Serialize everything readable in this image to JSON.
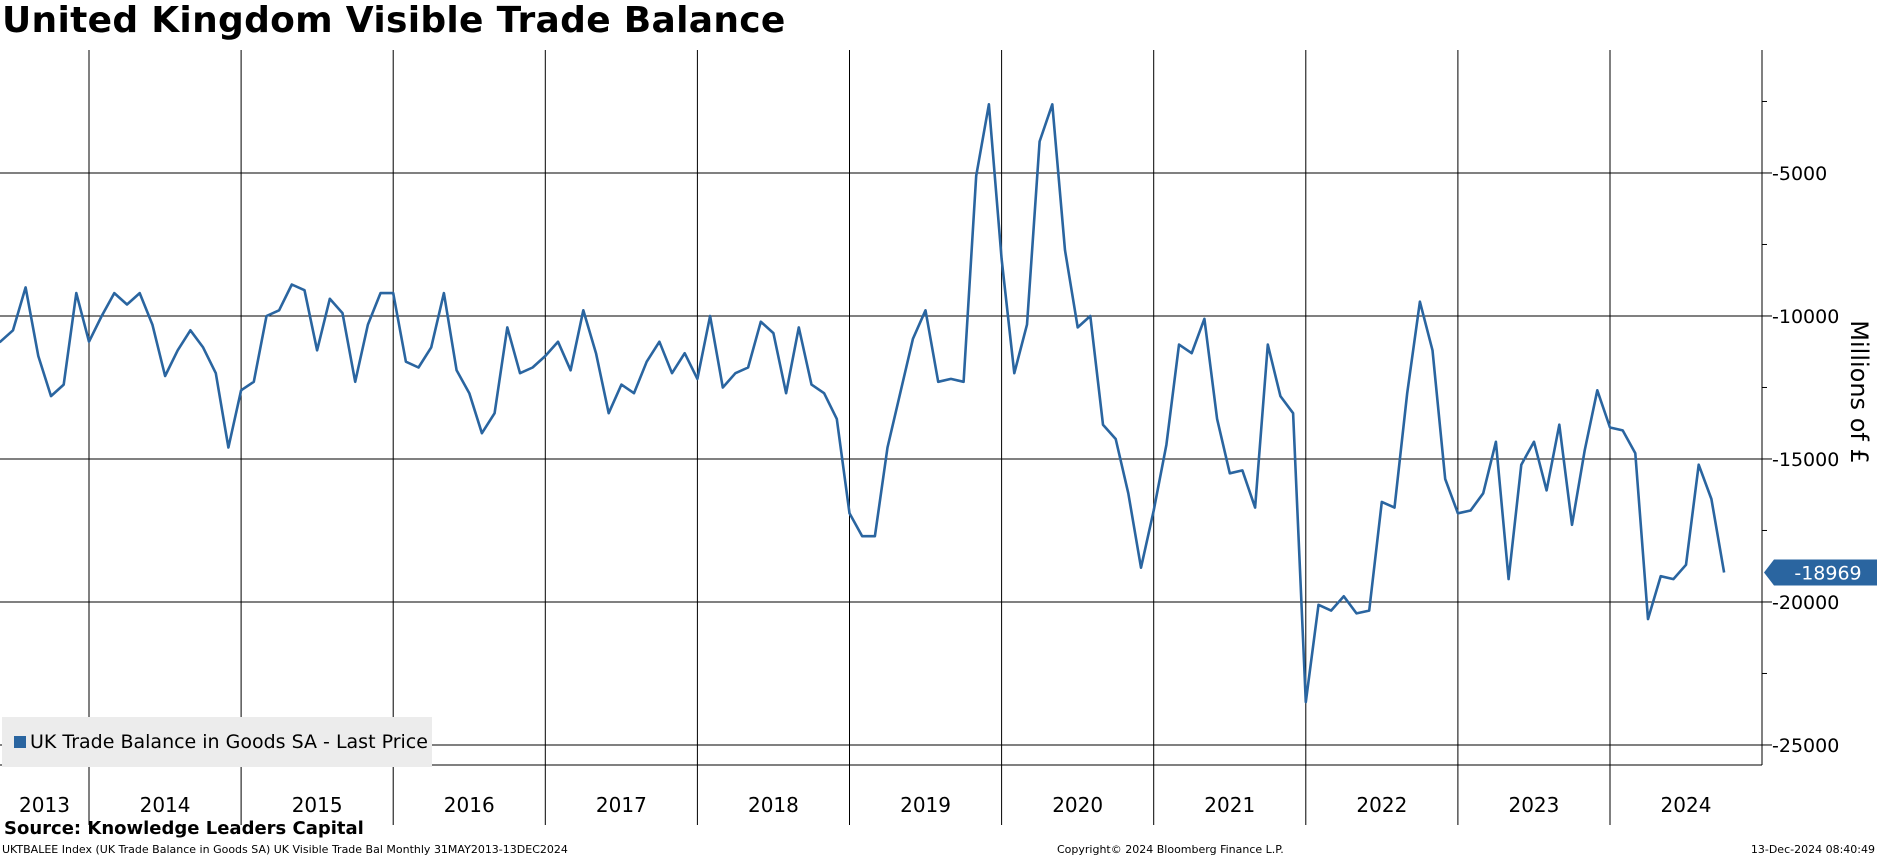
{
  "title": "United Kingdom Visible Trade Balance",
  "source": "Source: Knowledge Leaders Capital",
  "footer": {
    "left": "UKTBALEE Index (UK Trade Balance in Goods SA) UK Visible Trade Bal  Monthly 31MAY2013-13DEC2024",
    "center": "Copyright© 2024 Bloomberg Finance L.P.",
    "right": "13-Dec-2024 08:40:49"
  },
  "colors": {
    "series": "#2a65a0",
    "last_tag": "#2a65a0",
    "grid": "#000000",
    "legend_bg": "#ececec"
  },
  "chart_data": {
    "type": "line",
    "xaxis": {
      "type": "time",
      "start": "2013-05",
      "end": "2024-12",
      "year_labels": [
        "2013",
        "2014",
        "2015",
        "2016",
        "2017",
        "2018",
        "2019",
        "2020",
        "2021",
        "2022",
        "2023",
        "2024"
      ]
    },
    "ylabel": "Millions of £",
    "ylim": [
      -25700,
      -700
    ],
    "yticks": [
      -5000,
      -10000,
      -15000,
      -20000,
      -25000
    ],
    "ytick_labels": [
      "-5000",
      "-10000",
      "-15000",
      "-20000",
      "-25000"
    ],
    "grid": true,
    "legend": {
      "position": "bottom-left",
      "label": "UK Trade Balance in Goods SA - Last Price"
    },
    "last_value": {
      "value": -18969,
      "label": "-18969"
    },
    "series": [
      {
        "name": "UK Trade Balance in Goods SA - Last Price",
        "x": [
          "2013-05",
          "2013-06",
          "2013-07",
          "2013-08",
          "2013-09",
          "2013-10",
          "2013-11",
          "2013-12",
          "2014-01",
          "2014-02",
          "2014-03",
          "2014-04",
          "2014-05",
          "2014-06",
          "2014-07",
          "2014-08",
          "2014-09",
          "2014-10",
          "2014-11",
          "2014-12",
          "2015-01",
          "2015-02",
          "2015-03",
          "2015-04",
          "2015-05",
          "2015-06",
          "2015-07",
          "2015-08",
          "2015-09",
          "2015-10",
          "2015-11",
          "2015-12",
          "2016-01",
          "2016-02",
          "2016-03",
          "2016-04",
          "2016-05",
          "2016-06",
          "2016-07",
          "2016-08",
          "2016-09",
          "2016-10",
          "2016-11",
          "2016-12",
          "2017-01",
          "2017-02",
          "2017-03",
          "2017-04",
          "2017-05",
          "2017-06",
          "2017-07",
          "2017-08",
          "2017-09",
          "2017-10",
          "2017-11",
          "2017-12",
          "2018-01",
          "2018-02",
          "2018-03",
          "2018-04",
          "2018-05",
          "2018-06",
          "2018-07",
          "2018-08",
          "2018-09",
          "2018-10",
          "2018-11",
          "2018-12",
          "2019-01",
          "2019-02",
          "2019-03",
          "2019-04",
          "2019-05",
          "2019-06",
          "2019-07",
          "2019-08",
          "2019-09",
          "2019-10",
          "2019-11",
          "2019-12",
          "2020-01",
          "2020-02",
          "2020-03",
          "2020-04",
          "2020-05",
          "2020-06",
          "2020-07",
          "2020-08",
          "2020-09",
          "2020-10",
          "2020-11",
          "2020-12",
          "2021-01",
          "2021-02",
          "2021-03",
          "2021-04",
          "2021-05",
          "2021-06",
          "2021-07",
          "2021-08",
          "2021-09",
          "2021-10",
          "2021-11",
          "2021-12",
          "2022-01",
          "2022-02",
          "2022-03",
          "2022-04",
          "2022-05",
          "2022-06",
          "2022-07",
          "2022-08",
          "2022-09",
          "2022-10",
          "2022-11",
          "2022-12",
          "2023-01",
          "2023-02",
          "2023-03",
          "2023-04",
          "2023-05",
          "2023-06",
          "2023-07",
          "2023-08",
          "2023-09",
          "2023-10",
          "2023-11",
          "2023-12",
          "2024-01",
          "2024-02",
          "2024-03",
          "2024-04",
          "2024-05",
          "2024-06",
          "2024-07",
          "2024-08",
          "2024-09",
          "2024-10"
        ],
        "values": [
          -11100,
          -10900,
          -10500,
          -9000,
          -11400,
          -12800,
          -12400,
          -9200,
          -10900,
          -10000,
          -9200,
          -9600,
          -9200,
          -10300,
          -12100,
          -11200,
          -10500,
          -11100,
          -12000,
          -14600,
          -12600,
          -12300,
          -10000,
          -9800,
          -8900,
          -9100,
          -11200,
          -9400,
          -9900,
          -12300,
          -10300,
          -9200,
          -9200,
          -11600,
          -11800,
          -11100,
          -9200,
          -11900,
          -12700,
          -14100,
          -13400,
          -10400,
          -12000,
          -11800,
          -11400,
          -10900,
          -11900,
          -9800,
          -11300,
          -13400,
          -12400,
          -12700,
          -11600,
          -10900,
          -12000,
          -11300,
          -12200,
          -10000,
          -12500,
          -12000,
          -11800,
          -10200,
          -10600,
          -12700,
          -10400,
          -12400,
          -12700,
          -13600,
          -16900,
          -17700,
          -17700,
          -14600,
          -12700,
          -10800,
          -9800,
          -12300,
          -12200,
          -12300,
          -5100,
          -2600,
          -8000,
          -12000,
          -10300,
          -3900,
          -2600,
          -7700,
          -10400,
          -10000,
          -13800,
          -14300,
          -16200,
          -18800,
          -16800,
          -14500,
          -11000,
          -11300,
          -10100,
          -13600,
          -15500,
          -15400,
          -16700,
          -11000,
          -12800,
          -13400,
          -23500,
          -20100,
          -20300,
          -19800,
          -20400,
          -20300,
          -16500,
          -16700,
          -12700,
          -9500,
          -11200,
          -15700,
          -16900,
          -16800,
          -16200,
          -14400,
          -19200,
          -15200,
          -14400,
          -16100,
          -13800,
          -17300,
          -14700,
          -12600,
          -13900,
          -14000,
          -14800,
          -20600,
          -19100,
          -19200,
          -18700,
          -15200,
          -16400,
          -18969
        ]
      }
    ]
  }
}
